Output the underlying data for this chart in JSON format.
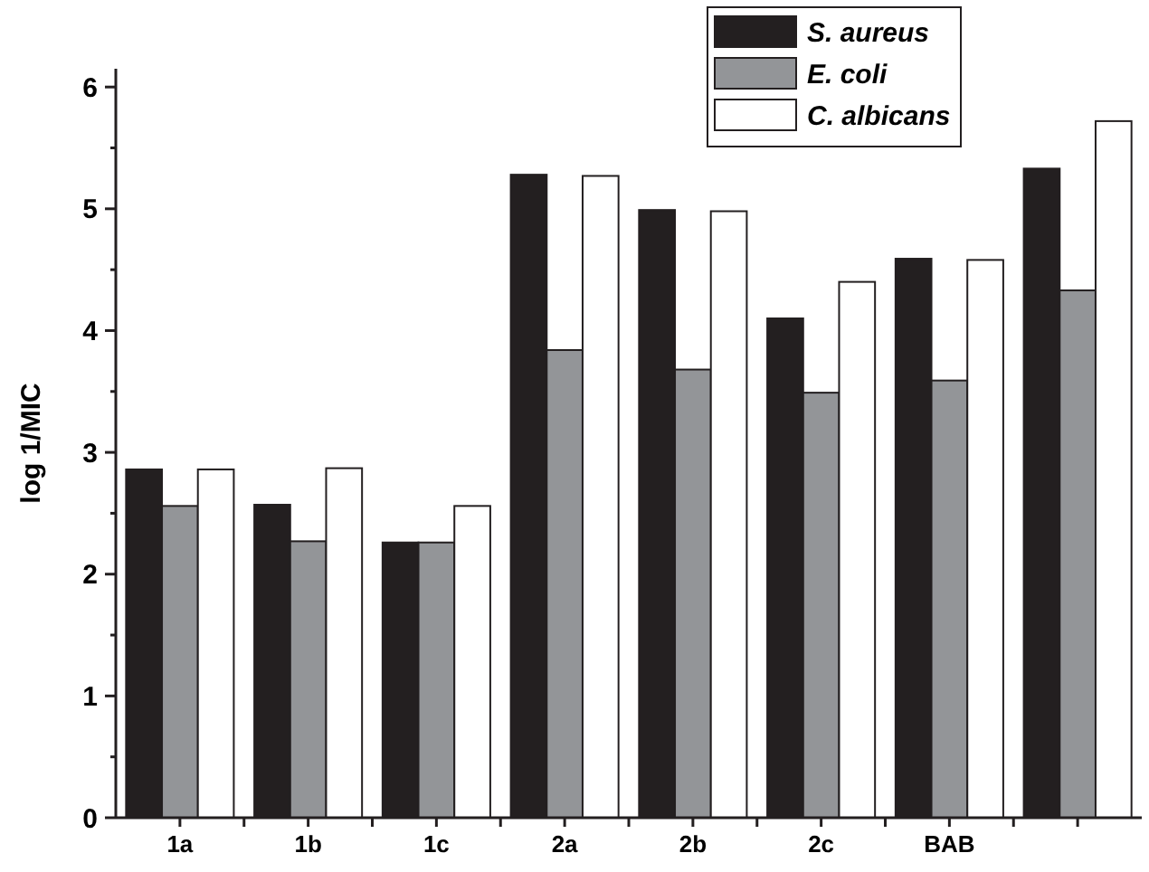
{
  "chart_data": {
    "type": "bar",
    "ylabel": "log 1/MIC",
    "categories": [
      "1a",
      "1b",
      "1c",
      "2a",
      "2b",
      "2c",
      "BAB",
      null
    ],
    "series": [
      {
        "name": "S. aureus",
        "color": "#231f20",
        "values": [
          2.86,
          2.57,
          2.26,
          5.28,
          4.99,
          4.1,
          4.59,
          5.33
        ]
      },
      {
        "name": "E. coli",
        "color": "#939598",
        "values": [
          2.56,
          2.27,
          2.26,
          3.84,
          3.68,
          3.49,
          3.59,
          4.33
        ]
      },
      {
        "name": "C. albicans",
        "color": "#ffffff",
        "values": [
          2.86,
          2.87,
          2.56,
          5.27,
          4.98,
          4.4,
          4.58,
          5.72
        ]
      }
    ],
    "ylim": [
      0,
      6.15
    ],
    "yticks": [
      0,
      {
        "value": 0.5,
        "label": null
      },
      1,
      {
        "value": 1.5,
        "label": null
      },
      2,
      {
        "value": 2.5,
        "label": null
      },
      3,
      {
        "value": 3.5,
        "label": null
      },
      4,
      {
        "value": 4.5,
        "label": null
      },
      5,
      {
        "value": 5.5,
        "label": null
      },
      6
    ],
    "legend": "top right",
    "grid": false
  }
}
